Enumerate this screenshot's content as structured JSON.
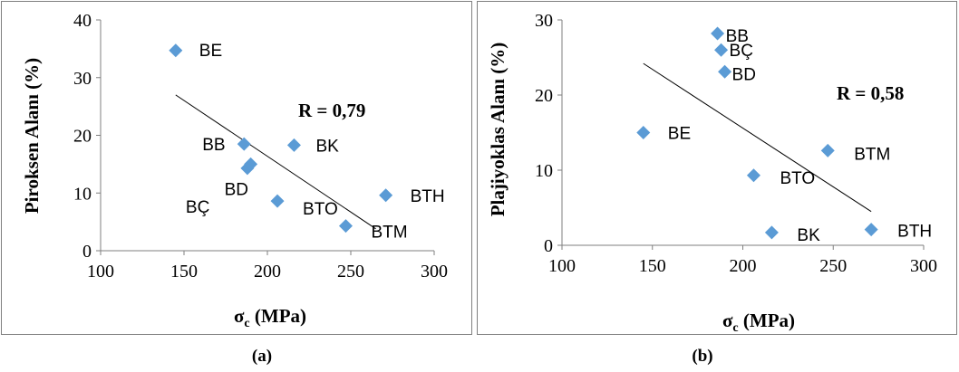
{
  "chart_data": [
    {
      "type": "scatter",
      "caption": "(a)",
      "xlabel_main": "σ",
      "xlabel_sub": "c",
      "xlabel_tail": " (MPa)",
      "ylabel": "Piroksen Alanı (%)",
      "annotation": "R = 0,79",
      "xlim": [
        100,
        300
      ],
      "ylim": [
        0,
        40
      ],
      "xticks": [
        "100",
        "150",
        "200",
        "250",
        "300"
      ],
      "yticks": [
        "0",
        "10",
        "20",
        "30",
        "40"
      ],
      "marker_color": "#5b9bd5",
      "trendline": {
        "x1": 145,
        "y1": 27,
        "x2": 265,
        "y2": 3.8
      },
      "points": [
        {
          "label": "BE",
          "x": 145,
          "y": 34.7
        },
        {
          "label": "BB",
          "x": 186,
          "y": 18.5
        },
        {
          "label": "BK",
          "x": 216,
          "y": 18.3
        },
        {
          "label": "BÇ",
          "x": 188,
          "y": 14.3
        },
        {
          "label": "BD",
          "x": 190,
          "y": 15.0
        },
        {
          "label": "BTO",
          "x": 206,
          "y": 8.6
        },
        {
          "label": "BTH",
          "x": 271,
          "y": 9.6
        },
        {
          "label": "BTM",
          "x": 247,
          "y": 4.3
        }
      ]
    },
    {
      "type": "scatter",
      "caption": "(b)",
      "xlabel_main": "σ",
      "xlabel_sub": "c",
      "xlabel_tail": " (MPa)",
      "ylabel": "Plajiyoklas Alanı (%)",
      "annotation": "R = 0,58",
      "xlim": [
        100,
        300
      ],
      "ylim": [
        0,
        30
      ],
      "xticks": [
        "100",
        "150",
        "200",
        "250",
        "300"
      ],
      "yticks": [
        "0",
        "10",
        "20",
        "30"
      ],
      "marker_color": "#5b9bd5",
      "trendline": {
        "x1": 145,
        "y1": 24.2,
        "x2": 271,
        "y2": 4.5
      },
      "points": [
        {
          "label": "BB",
          "x": 186,
          "y": 28.2
        },
        {
          "label": "BÇ",
          "x": 188,
          "y": 26.0
        },
        {
          "label": "BD",
          "x": 190,
          "y": 23.1
        },
        {
          "label": "BE",
          "x": 145,
          "y": 15.0
        },
        {
          "label": "BTM",
          "x": 247,
          "y": 12.6
        },
        {
          "label": "BTO",
          "x": 206,
          "y": 9.3
        },
        {
          "label": "BK",
          "x": 216,
          "y": 1.7
        },
        {
          "label": "BTH",
          "x": 271,
          "y": 2.1
        }
      ]
    }
  ]
}
